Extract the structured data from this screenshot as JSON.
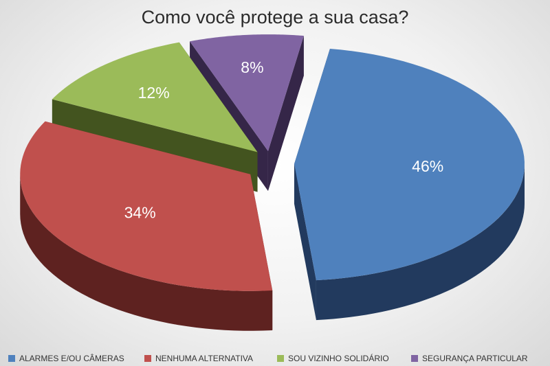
{
  "chart_data": {
    "type": "pie",
    "title": "Como você protege a sua casa?",
    "exploded": true,
    "three_d": true,
    "legend_position": "bottom",
    "slices": [
      {
        "name": "ALARMES E/OU CÂMERAS",
        "value": 46,
        "label": "46%",
        "color": "#4f81bd",
        "side_color": "#223a5e"
      },
      {
        "name": "NENHUMA ALTERNATIVA",
        "value": 34,
        "label": "34%",
        "color": "#c0504d",
        "side_color": "#5e2220"
      },
      {
        "name": "SOU VIZINHO SOLIDÁRIO",
        "value": 12,
        "label": "12%",
        "color": "#9bbb59",
        "side_color": "#43541f"
      },
      {
        "name": "SEGURANÇA PARTICULAR",
        "value": 8,
        "label": "8%",
        "color": "#8064a2",
        "side_color": "#352648"
      }
    ]
  }
}
